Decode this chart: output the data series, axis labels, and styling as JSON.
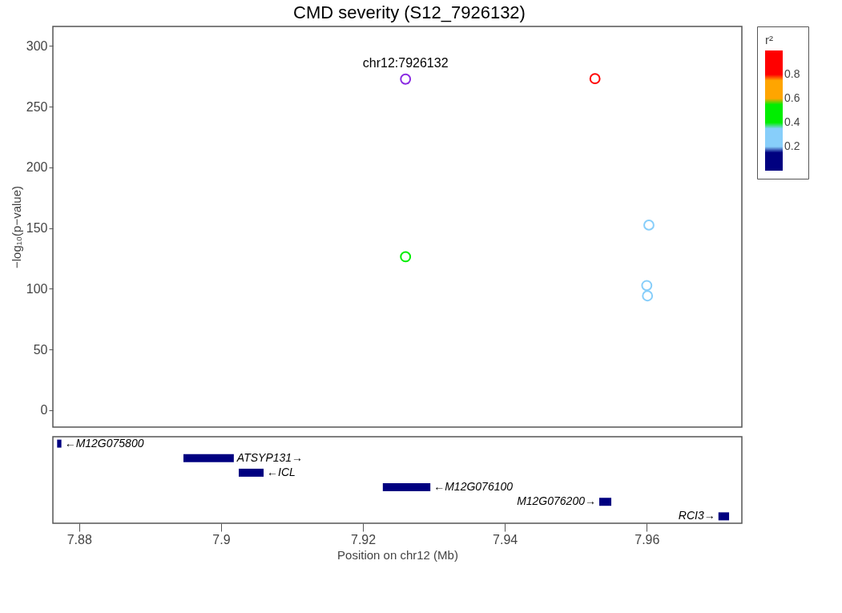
{
  "chart_data": [
    {
      "type": "scatter",
      "title": "CMD severity (S12_7926132)",
      "ylabel": "−log₁₀(p−value)",
      "clabel": "r²",
      "clim": [
        0,
        1
      ],
      "cticks": [
        0.2,
        0.4,
        0.6,
        0.8
      ],
      "colors": [
        "#000080",
        "#87cefa",
        "#00ee00",
        "#ffa500",
        "#ff0000"
      ],
      "xlim": [
        7.8763,
        7.9734
      ],
      "ylim": [
        -14,
        316
      ],
      "yticks": [
        0,
        50,
        100,
        150,
        200,
        250,
        300
      ],
      "tick_labels": "y",
      "grid": false,
      "marker": "circle",
      "series": [
        {
          "x": [
            7.926
          ],
          "values": [
            272.6
          ],
          "color": "#8a2be2"
        },
        {
          "x": [
            7.9527
          ],
          "values": [
            273
          ],
          "color": "#ff0000"
        },
        {
          "x": [
            7.926
          ],
          "values": [
            126.3
          ],
          "color": "#00ee00"
        },
        {
          "x": [
            7.9603,
            7.96,
            7.9601
          ],
          "values": [
            152.4,
            102.6,
            94.1
          ],
          "color": "#87cefa"
        }
      ],
      "annotations": [
        {
          "text": "chr12:7926132",
          "x": 7.926,
          "y": 272.6
        }
      ]
    },
    {
      "type": "bar",
      "orientation": "horizontal",
      "categories": [
        null,
        null,
        null,
        null,
        null,
        null
      ],
      "xlabel": "Position on chr12 (Mb)",
      "xlim": [
        7.8763,
        7.9734
      ],
      "xticks": [
        7.88,
        7.9,
        7.92,
        7.94,
        7.96
      ],
      "tick_labels": "x",
      "color": "#000080",
      "base": [
        7.8769,
        7.8947,
        7.9025,
        7.9228,
        7.9533,
        7.9701
      ],
      "values": [
        0.0006,
        0.0071,
        0.0035,
        0.0067,
        0.0017,
        0.0015
      ],
      "value_labels": [
        "←M12G075800",
        "ATSYP131→",
        "←ICL",
        "←M12G076100",
        "M12G076200→",
        "RCI3→"
      ]
    }
  ]
}
